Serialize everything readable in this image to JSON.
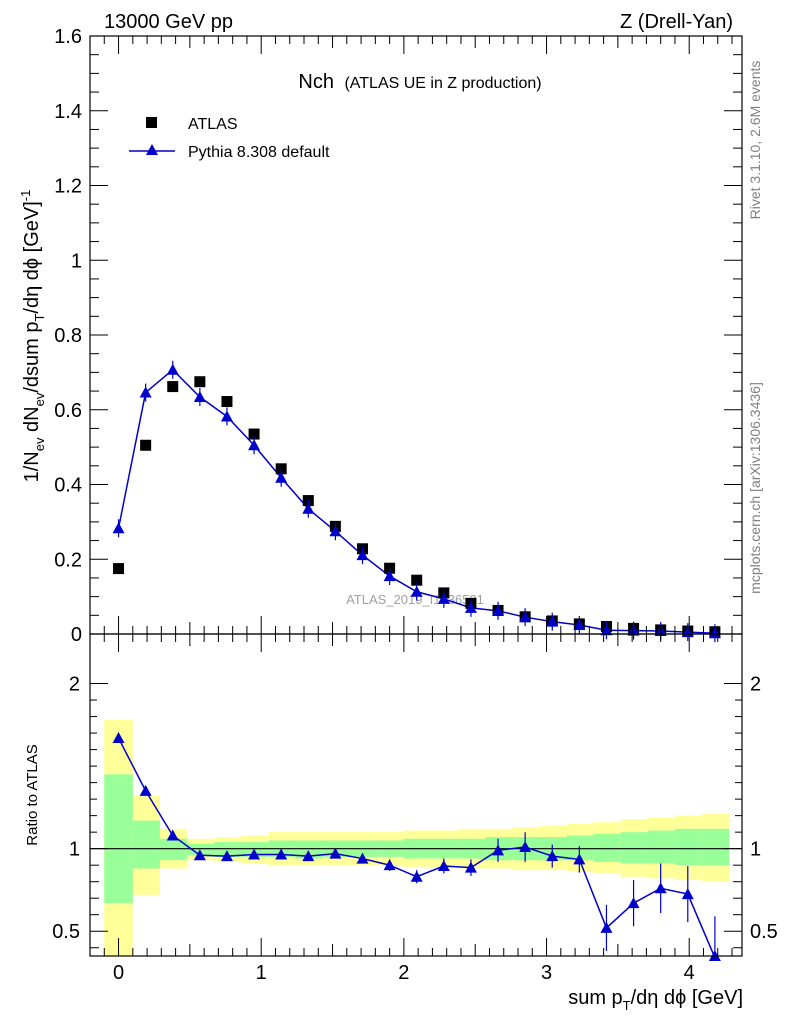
{
  "header": {
    "left": "13000 GeV pp",
    "right": "Z (Drell-Yan)"
  },
  "side_labels": {
    "rivet": "Rivet 3.1.10,  2.6M events",
    "mcplots": "mcplots.cern.ch [arXiv:1306.3436]"
  },
  "watermark": "ATLAS_2019_I1736531",
  "chart_data": {
    "type": "scatter",
    "title": "Nch",
    "subtitle": "(ATLAS UE in Z production)",
    "xlabel": "sum p_T/dη dϕ [GeV]",
    "ylabel": "1/N_ev dN_ev/dsum p_T/dη dϕ [GeV]^-1",
    "ratio_ylabel": "Ratio to ATLAS",
    "xlim": [
      -0.2,
      4.37
    ],
    "ylim": [
      0,
      1.6
    ],
    "ratio_ylim": [
      0.35,
      2.3
    ],
    "grid": false,
    "legend_position": "top-left",
    "x_ticks": [
      "0",
      "1",
      "2",
      "3",
      "4"
    ],
    "y_ticks": [
      "0",
      "0.2",
      "0.4",
      "0.6",
      "0.8",
      "1",
      "1.2",
      "1.4",
      "1.6"
    ],
    "ratio_ticks": [
      "0.5",
      "1",
      "2"
    ],
    "x": [
      0.0,
      0.19,
      0.38,
      0.57,
      0.76,
      0.95,
      1.14,
      1.33,
      1.52,
      1.71,
      1.9,
      2.09,
      2.28,
      2.47,
      2.66,
      2.85,
      3.04,
      3.23,
      3.42,
      3.61,
      3.8,
      3.99,
      4.18
    ],
    "bin_edges": [
      -0.1,
      0.1,
      0.29,
      0.48,
      0.67,
      0.86,
      1.05,
      1.24,
      1.43,
      1.62,
      1.81,
      2.0,
      2.19,
      2.38,
      2.57,
      2.76,
      2.95,
      3.14,
      3.33,
      3.52,
      3.71,
      3.9,
      4.09,
      4.28
    ],
    "series": [
      {
        "name": "ATLAS",
        "color": "#000000",
        "marker": "square",
        "values": [
          0.175,
          0.505,
          0.662,
          0.675,
          0.622,
          0.535,
          0.442,
          0.357,
          0.288,
          0.228,
          0.176,
          0.144,
          0.11,
          0.082,
          0.063,
          0.046,
          0.035,
          0.027,
          0.02,
          0.015,
          0.011,
          0.008,
          0.006
        ]
      },
      {
        "name": "Pythia 8.308 default",
        "color": "#0000cc",
        "marker": "triangle",
        "values": [
          0.283,
          0.646,
          0.707,
          0.634,
          0.582,
          0.505,
          0.418,
          0.335,
          0.275,
          0.211,
          0.155,
          0.113,
          0.094,
          0.07,
          0.062,
          0.045,
          0.033,
          0.024,
          0.01,
          0.009,
          0.008,
          0.005,
          0.002
        ],
        "ratio": [
          1.67,
          1.35,
          1.08,
          0.96,
          0.955,
          0.965,
          0.965,
          0.955,
          0.97,
          0.94,
          0.9,
          0.83,
          0.895,
          0.885,
          0.99,
          1.01,
          0.955,
          0.935,
          0.52,
          0.67,
          0.76,
          0.725,
          0.34
        ],
        "ratio_err": [
          0.03,
          0.02,
          0.015,
          0.012,
          0.015,
          0.015,
          0.02,
          0.02,
          0.025,
          0.03,
          0.035,
          0.04,
          0.045,
          0.05,
          0.07,
          0.09,
          0.07,
          0.08,
          0.14,
          0.14,
          0.15,
          0.17,
          0.25
        ]
      }
    ],
    "ratio_band_green": [
      [
        0.67,
        1.45
      ],
      [
        0.88,
        1.17
      ],
      [
        0.93,
        1.06
      ],
      [
        0.96,
        1.03
      ],
      [
        0.95,
        1.04
      ],
      [
        0.95,
        1.04
      ],
      [
        0.95,
        1.05
      ],
      [
        0.94,
        1.05
      ],
      [
        0.95,
        1.05
      ],
      [
        0.95,
        1.05
      ],
      [
        0.95,
        1.05
      ],
      [
        0.94,
        1.06
      ],
      [
        0.94,
        1.06
      ],
      [
        0.94,
        1.06
      ],
      [
        0.93,
        1.07
      ],
      [
        0.93,
        1.07
      ],
      [
        0.93,
        1.07
      ],
      [
        0.93,
        1.08
      ],
      [
        0.92,
        1.09
      ],
      [
        0.91,
        1.1
      ],
      [
        0.91,
        1.11
      ],
      [
        0.9,
        1.12
      ],
      [
        0.9,
        1.12
      ]
    ],
    "ratio_band_yellow": [
      [
        0.33,
        1.78
      ],
      [
        0.72,
        1.32
      ],
      [
        0.88,
        1.12
      ],
      [
        0.93,
        1.06
      ],
      [
        0.92,
        1.07
      ],
      [
        0.91,
        1.08
      ],
      [
        0.9,
        1.1
      ],
      [
        0.9,
        1.1
      ],
      [
        0.9,
        1.1
      ],
      [
        0.9,
        1.1
      ],
      [
        0.9,
        1.1
      ],
      [
        0.89,
        1.11
      ],
      [
        0.89,
        1.11
      ],
      [
        0.88,
        1.12
      ],
      [
        0.88,
        1.12
      ],
      [
        0.87,
        1.13
      ],
      [
        0.87,
        1.14
      ],
      [
        0.86,
        1.15
      ],
      [
        0.85,
        1.16
      ],
      [
        0.83,
        1.18
      ],
      [
        0.82,
        1.19
      ],
      [
        0.81,
        1.2
      ],
      [
        0.8,
        1.21
      ]
    ]
  }
}
